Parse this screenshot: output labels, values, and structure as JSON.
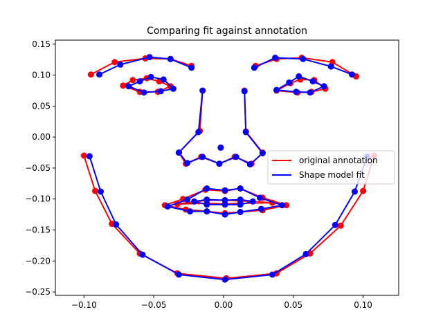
{
  "chart_data": {
    "type": "line",
    "title": "Comparing fit against annotation",
    "xlabel": "",
    "ylabel": "",
    "xlim": [
      -0.1205,
      0.1255
    ],
    "ylim": [
      -0.2555,
      0.1565
    ],
    "xticks": [
      -0.1,
      -0.05,
      0.0,
      0.05,
      0.1
    ],
    "xtick_labels": [
      "−0.10",
      "−0.05",
      "0.00",
      "0.05",
      "0.10"
    ],
    "yticks": [
      0.15,
      0.1,
      0.05,
      0.0,
      -0.05,
      -0.1,
      -0.15,
      -0.2,
      -0.25
    ],
    "ytick_labels": [
      "0.15",
      "0.10",
      "0.05",
      "0.00",
      "−0.05",
      "−0.10",
      "−0.15",
      "−0.20",
      "−0.25"
    ],
    "grid": false,
    "legend": {
      "placement": "center-right"
    },
    "series": [
      {
        "name": "original annotation",
        "color": "#ff0000",
        "groups": [
          [
            [
              -0.1,
              -0.03
            ],
            [
              -0.092,
              -0.087
            ],
            [
              -0.08,
              -0.14
            ],
            [
              -0.06,
              -0.188
            ],
            [
              -0.033,
              -0.22
            ],
            [
              0.002,
              -0.228
            ],
            [
              0.038,
              -0.22
            ],
            [
              0.062,
              -0.188
            ],
            [
              0.084,
              -0.143
            ],
            [
              0.1,
              -0.087
            ],
            [
              0.108,
              -0.03
            ]
          ],
          [
            [
              -0.095,
              0.101
            ],
            [
              -0.078,
              0.121
            ],
            [
              -0.056,
              0.127
            ],
            [
              -0.038,
              0.126
            ],
            [
              -0.023,
              0.115
            ]
          ],
          [
            [
              0.023,
              0.115
            ],
            [
              0.038,
              0.126
            ],
            [
              0.056,
              0.128
            ],
            [
              0.078,
              0.121
            ],
            [
              0.095,
              0.098
            ]
          ],
          [
            [
              -0.015,
              0.075
            ],
            [
              -0.017,
              0.01
            ],
            [
              -0.032,
              -0.025
            ],
            [
              -0.027,
              -0.043
            ],
            [
              -0.016,
              -0.032
            ],
            [
              -0.003,
              -0.043
            ],
            [
              0.008,
              -0.032
            ],
            [
              0.02,
              -0.043
            ],
            [
              0.028,
              -0.025
            ],
            [
              0.016,
              0.009
            ],
            [
              0.015,
              0.075
            ]
          ],
          [
            [
              -0.072,
              0.083
            ],
            [
              -0.065,
              0.092
            ],
            [
              -0.055,
              0.095
            ],
            [
              -0.046,
              0.09
            ],
            [
              -0.038,
              0.082
            ],
            [
              -0.047,
              0.073
            ],
            [
              -0.06,
              0.073
            ],
            [
              -0.072,
              0.083
            ]
          ],
          [
            [
              0.038,
              0.075
            ],
            [
              0.048,
              0.087
            ],
            [
              0.055,
              0.093
            ],
            [
              0.065,
              0.092
            ],
            [
              0.073,
              0.078
            ],
            [
              0.063,
              0.073
            ],
            [
              0.053,
              0.072
            ],
            [
              0.038,
              0.075
            ]
          ],
          [
            [
              -0.042,
              -0.11
            ],
            [
              -0.029,
              -0.1
            ],
            [
              -0.013,
              -0.085
            ],
            [
              0.001,
              -0.087
            ],
            [
              0.012,
              -0.083
            ],
            [
              0.028,
              -0.098
            ],
            [
              0.045,
              -0.11
            ],
            [
              0.028,
              -0.118
            ],
            [
              0.012,
              -0.121
            ],
            [
              0.001,
              -0.123
            ],
            [
              -0.012,
              -0.12
            ],
            [
              -0.027,
              -0.117
            ],
            [
              -0.042,
              -0.11
            ]
          ],
          [
            [
              -0.033,
              -0.108
            ],
            [
              -0.012,
              -0.102
            ],
            [
              0.001,
              -0.102
            ],
            [
              0.012,
              -0.103
            ],
            [
              0.035,
              -0.106
            ],
            [
              0.012,
              -0.107
            ],
            [
              0.001,
              -0.108
            ],
            [
              -0.012,
              -0.107
            ],
            [
              -0.033,
              -0.108
            ]
          ]
        ],
        "points": [
          [
            -0.002,
            -0.017
          ]
        ]
      },
      {
        "name": "Shape model fit",
        "color": "#0000ff",
        "groups": [
          [
            [
              -0.096,
              -0.031
            ],
            [
              -0.088,
              -0.088
            ],
            [
              -0.077,
              -0.141
            ],
            [
              -0.058,
              -0.19
            ],
            [
              -0.032,
              -0.222
            ],
            [
              0.001,
              -0.23
            ],
            [
              0.035,
              -0.222
            ],
            [
              0.059,
              -0.189
            ],
            [
              0.08,
              -0.142
            ],
            [
              0.094,
              -0.088
            ],
            [
              0.103,
              -0.031
            ]
          ],
          [
            [
              -0.089,
              0.101
            ],
            [
              -0.074,
              0.117
            ],
            [
              -0.053,
              0.129
            ],
            [
              -0.038,
              0.126
            ],
            [
              -0.023,
              0.112
            ]
          ],
          [
            [
              0.022,
              0.112
            ],
            [
              0.037,
              0.128
            ],
            [
              0.057,
              0.126
            ],
            [
              0.077,
              0.114
            ],
            [
              0.092,
              0.101
            ]
          ],
          [
            [
              -0.015,
              0.075
            ],
            [
              -0.018,
              0.008
            ],
            [
              -0.032,
              -0.025
            ],
            [
              -0.026,
              -0.042
            ],
            [
              -0.015,
              -0.032
            ],
            [
              -0.003,
              -0.043
            ],
            [
              0.009,
              -0.032
            ],
            [
              0.019,
              -0.044
            ],
            [
              0.028,
              -0.026
            ],
            [
              0.016,
              0.008
            ],
            [
              0.015,
              0.074
            ]
          ],
          [
            [
              -0.068,
              0.082
            ],
            [
              -0.06,
              0.09
            ],
            [
              -0.052,
              0.097
            ],
            [
              -0.043,
              0.093
            ],
            [
              -0.036,
              0.078
            ],
            [
              -0.045,
              0.074
            ],
            [
              -0.057,
              0.072
            ],
            [
              -0.068,
              0.082
            ]
          ],
          [
            [
              0.038,
              0.076
            ],
            [
              0.047,
              0.088
            ],
            [
              0.054,
              0.098
            ],
            [
              0.064,
              0.09
            ],
            [
              0.072,
              0.082
            ],
            [
              0.062,
              0.072
            ],
            [
              0.052,
              0.073
            ],
            [
              0.038,
              0.076
            ]
          ],
          [
            [
              -0.04,
              -0.112
            ],
            [
              -0.026,
              -0.101
            ],
            [
              -0.012,
              -0.083
            ],
            [
              0.001,
              -0.086
            ],
            [
              0.012,
              -0.083
            ],
            [
              0.026,
              -0.098
            ],
            [
              0.042,
              -0.11
            ],
            [
              0.027,
              -0.116
            ],
            [
              0.012,
              -0.121
            ],
            [
              0.001,
              -0.125
            ],
            [
              -0.012,
              -0.12
            ],
            [
              -0.024,
              -0.12
            ],
            [
              -0.04,
              -0.112
            ]
          ],
          [
            [
              -0.021,
              -0.104
            ],
            [
              -0.012,
              -0.101
            ],
            [
              0.001,
              -0.102
            ],
            [
              0.012,
              -0.101
            ],
            [
              0.021,
              -0.104
            ],
            [
              0.012,
              -0.109
            ],
            [
              0.001,
              -0.109
            ],
            [
              -0.012,
              -0.109
            ],
            [
              -0.021,
              -0.104
            ]
          ]
        ],
        "points": [
          [
            -0.002,
            -0.017
          ]
        ]
      }
    ]
  }
}
